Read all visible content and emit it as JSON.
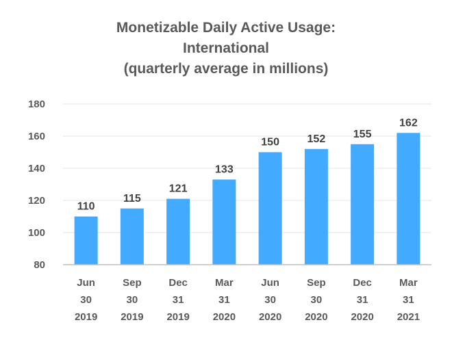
{
  "chart_data": {
    "type": "bar",
    "title_lines": [
      "Monetizable Daily Active Usage:",
      "International",
      "(quarterly average in millions)"
    ],
    "categories": [
      [
        "Jun",
        "30",
        "2019"
      ],
      [
        "Sep",
        "30",
        "2019"
      ],
      [
        "Dec",
        "31",
        "2019"
      ],
      [
        "Mar",
        "31",
        "2020"
      ],
      [
        "Jun",
        "30",
        "2020"
      ],
      [
        "Sep",
        "30",
        "2020"
      ],
      [
        "Dec",
        "31",
        "2020"
      ],
      [
        "Mar",
        "31",
        "2021"
      ]
    ],
    "values": [
      110,
      115,
      121,
      133,
      150,
      152,
      155,
      162
    ],
    "data_labels": [
      "110",
      "115",
      "121",
      "133",
      "150",
      "152",
      "155",
      "162"
    ],
    "yticks": [
      "80",
      "100",
      "120",
      "140",
      "160",
      "180"
    ],
    "ylim": [
      80,
      180
    ],
    "grid": true,
    "legend": "none",
    "bar_color": "#42aaff",
    "grid_color": "#e6e6e6",
    "axis_color": "#bfbfbf"
  }
}
